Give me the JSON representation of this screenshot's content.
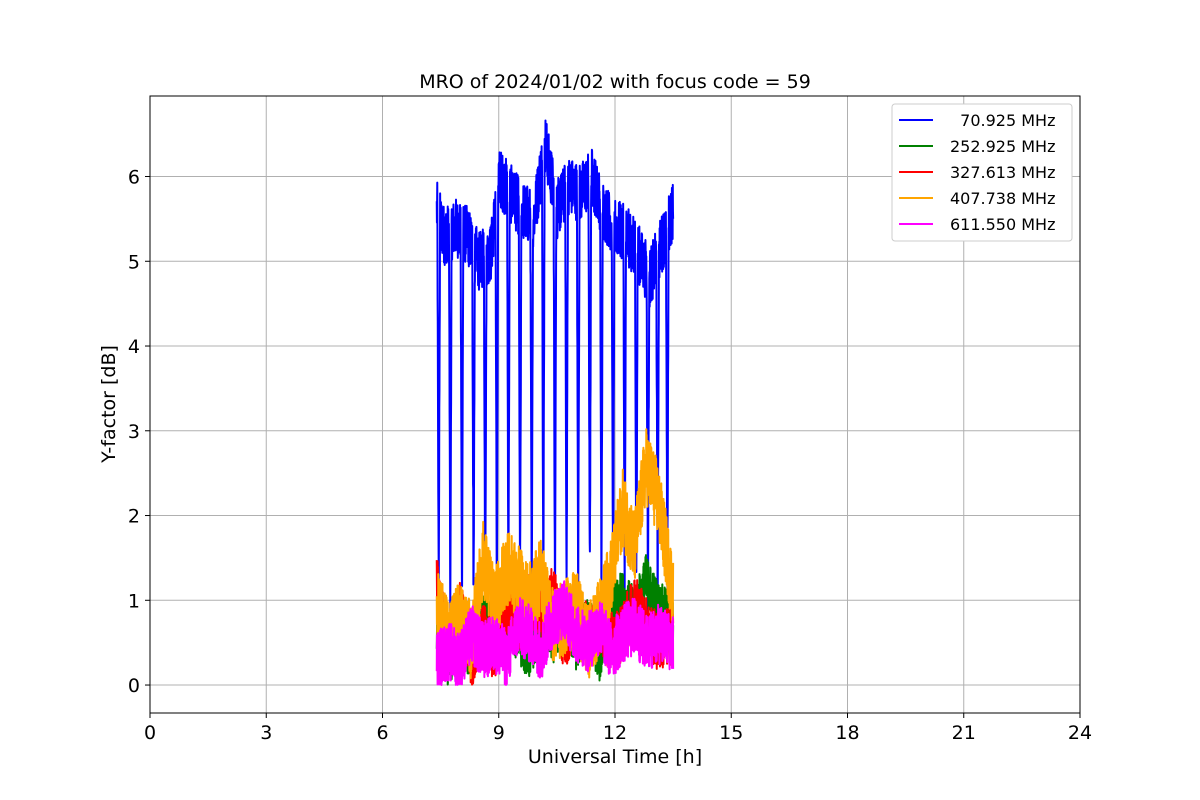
{
  "chart_data": {
    "type": "line",
    "title": "MRO of 2024/01/02 with focus code = 59",
    "xlabel": "Universal Time [h]",
    "ylabel": "Y-factor [dB]",
    "xlim": [
      0,
      24
    ],
    "ylim": [
      -0.33,
      6.95
    ],
    "xticks": [
      0,
      3,
      6,
      9,
      12,
      15,
      18,
      21,
      24
    ],
    "yticks": [
      0,
      1,
      2,
      3,
      4,
      5,
      6
    ],
    "grid": true,
    "legend_position": "top-right",
    "x_range_hours": [
      7.4,
      13.5
    ],
    "series": [
      {
        "name": "  70.925 MHz",
        "color": "#0000ff",
        "baseline": 5.5,
        "dips": [
          7.45,
          7.75,
          8.05,
          8.35,
          8.65,
          8.95,
          9.25,
          9.55,
          9.85,
          10.15,
          10.45,
          10.75,
          11.05,
          11.35,
          11.65,
          11.95,
          12.25,
          12.55,
          12.85,
          13.1,
          13.35
        ],
        "dip_value": 0.6,
        "points": [
          [
            7.4,
            5.6
          ],
          [
            7.6,
            5.3
          ],
          [
            7.9,
            5.4
          ],
          [
            8.2,
            5.3
          ],
          [
            8.5,
            5.0
          ],
          [
            8.8,
            5.1
          ],
          [
            9.0,
            6.0
          ],
          [
            9.3,
            5.8
          ],
          [
            9.6,
            5.6
          ],
          [
            9.9,
            5.5
          ],
          [
            10.2,
            6.4
          ],
          [
            10.5,
            5.6
          ],
          [
            10.8,
            5.9
          ],
          [
            11.1,
            5.8
          ],
          [
            11.4,
            6.0
          ],
          [
            11.7,
            5.6
          ],
          [
            12.0,
            5.4
          ],
          [
            12.3,
            5.3
          ],
          [
            12.6,
            5.1
          ],
          [
            12.9,
            4.8
          ],
          [
            13.2,
            5.2
          ],
          [
            13.5,
            5.6
          ]
        ]
      },
      {
        "name": "252.925 MHz",
        "color": "#008000",
        "points": [
          [
            7.4,
            0.7
          ],
          [
            7.7,
            0.3
          ],
          [
            8.0,
            0.6
          ],
          [
            8.3,
            0.4
          ],
          [
            8.6,
            0.8
          ],
          [
            8.9,
            0.5
          ],
          [
            9.2,
            0.9
          ],
          [
            9.5,
            0.6
          ],
          [
            9.8,
            0.4
          ],
          [
            10.1,
            0.8
          ],
          [
            10.4,
            0.6
          ],
          [
            10.7,
            0.9
          ],
          [
            11.0,
            0.5
          ],
          [
            11.3,
            0.7
          ],
          [
            11.6,
            0.4
          ],
          [
            11.9,
            0.9
          ],
          [
            12.2,
            1.0
          ],
          [
            12.5,
            0.8
          ],
          [
            12.8,
            1.2
          ],
          [
            13.1,
            0.9
          ],
          [
            13.5,
            0.7
          ]
        ]
      },
      {
        "name": "327.613 MHz",
        "color": "#ff0000",
        "points": [
          [
            7.4,
            1.2
          ],
          [
            7.7,
            0.4
          ],
          [
            8.0,
            0.9
          ],
          [
            8.3,
            0.3
          ],
          [
            8.6,
            0.6
          ],
          [
            8.9,
            0.4
          ],
          [
            9.2,
            0.9
          ],
          [
            9.5,
            0.7
          ],
          [
            9.8,
            1.0
          ],
          [
            10.1,
            0.8
          ],
          [
            10.4,
            1.1
          ],
          [
            10.7,
            0.5
          ],
          [
            11.0,
            0.9
          ],
          [
            11.3,
            0.6
          ],
          [
            11.6,
            0.7
          ],
          [
            11.9,
            0.5
          ],
          [
            12.2,
            0.6
          ],
          [
            12.5,
            1.0
          ],
          [
            12.8,
            0.7
          ],
          [
            13.1,
            0.5
          ],
          [
            13.5,
            0.6
          ]
        ]
      },
      {
        "name": "407.738 MHz",
        "color": "#ffa500",
        "points": [
          [
            7.4,
            0.9
          ],
          [
            7.7,
            0.6
          ],
          [
            8.0,
            0.8
          ],
          [
            8.3,
            0.5
          ],
          [
            8.6,
            1.5
          ],
          [
            8.9,
            0.9
          ],
          [
            9.2,
            1.4
          ],
          [
            9.5,
            1.2
          ],
          [
            9.8,
            1.0
          ],
          [
            10.1,
            1.3
          ],
          [
            10.4,
            0.7
          ],
          [
            10.7,
            0.8
          ],
          [
            11.0,
            0.9
          ],
          [
            11.3,
            0.5
          ],
          [
            11.6,
            0.8
          ],
          [
            11.9,
            1.3
          ],
          [
            12.2,
            2.1
          ],
          [
            12.5,
            1.6
          ],
          [
            12.8,
            2.6
          ],
          [
            13.1,
            2.2
          ],
          [
            13.5,
            1.1
          ]
        ]
      },
      {
        "name": "611.550 MHz",
        "color": "#ff00ff",
        "points": [
          [
            7.4,
            0.3
          ],
          [
            7.7,
            0.4
          ],
          [
            8.0,
            0.3
          ],
          [
            8.3,
            0.6
          ],
          [
            8.6,
            0.4
          ],
          [
            8.9,
            0.5
          ],
          [
            9.2,
            0.3
          ],
          [
            9.5,
            0.7
          ],
          [
            9.8,
            0.6
          ],
          [
            10.1,
            0.4
          ],
          [
            10.4,
            0.8
          ],
          [
            10.7,
            0.9
          ],
          [
            11.0,
            0.6
          ],
          [
            11.3,
            0.5
          ],
          [
            11.6,
            0.7
          ],
          [
            11.9,
            0.4
          ],
          [
            12.2,
            0.6
          ],
          [
            12.5,
            0.7
          ],
          [
            12.8,
            0.5
          ],
          [
            13.1,
            0.6
          ],
          [
            13.5,
            0.5
          ]
        ]
      }
    ]
  }
}
